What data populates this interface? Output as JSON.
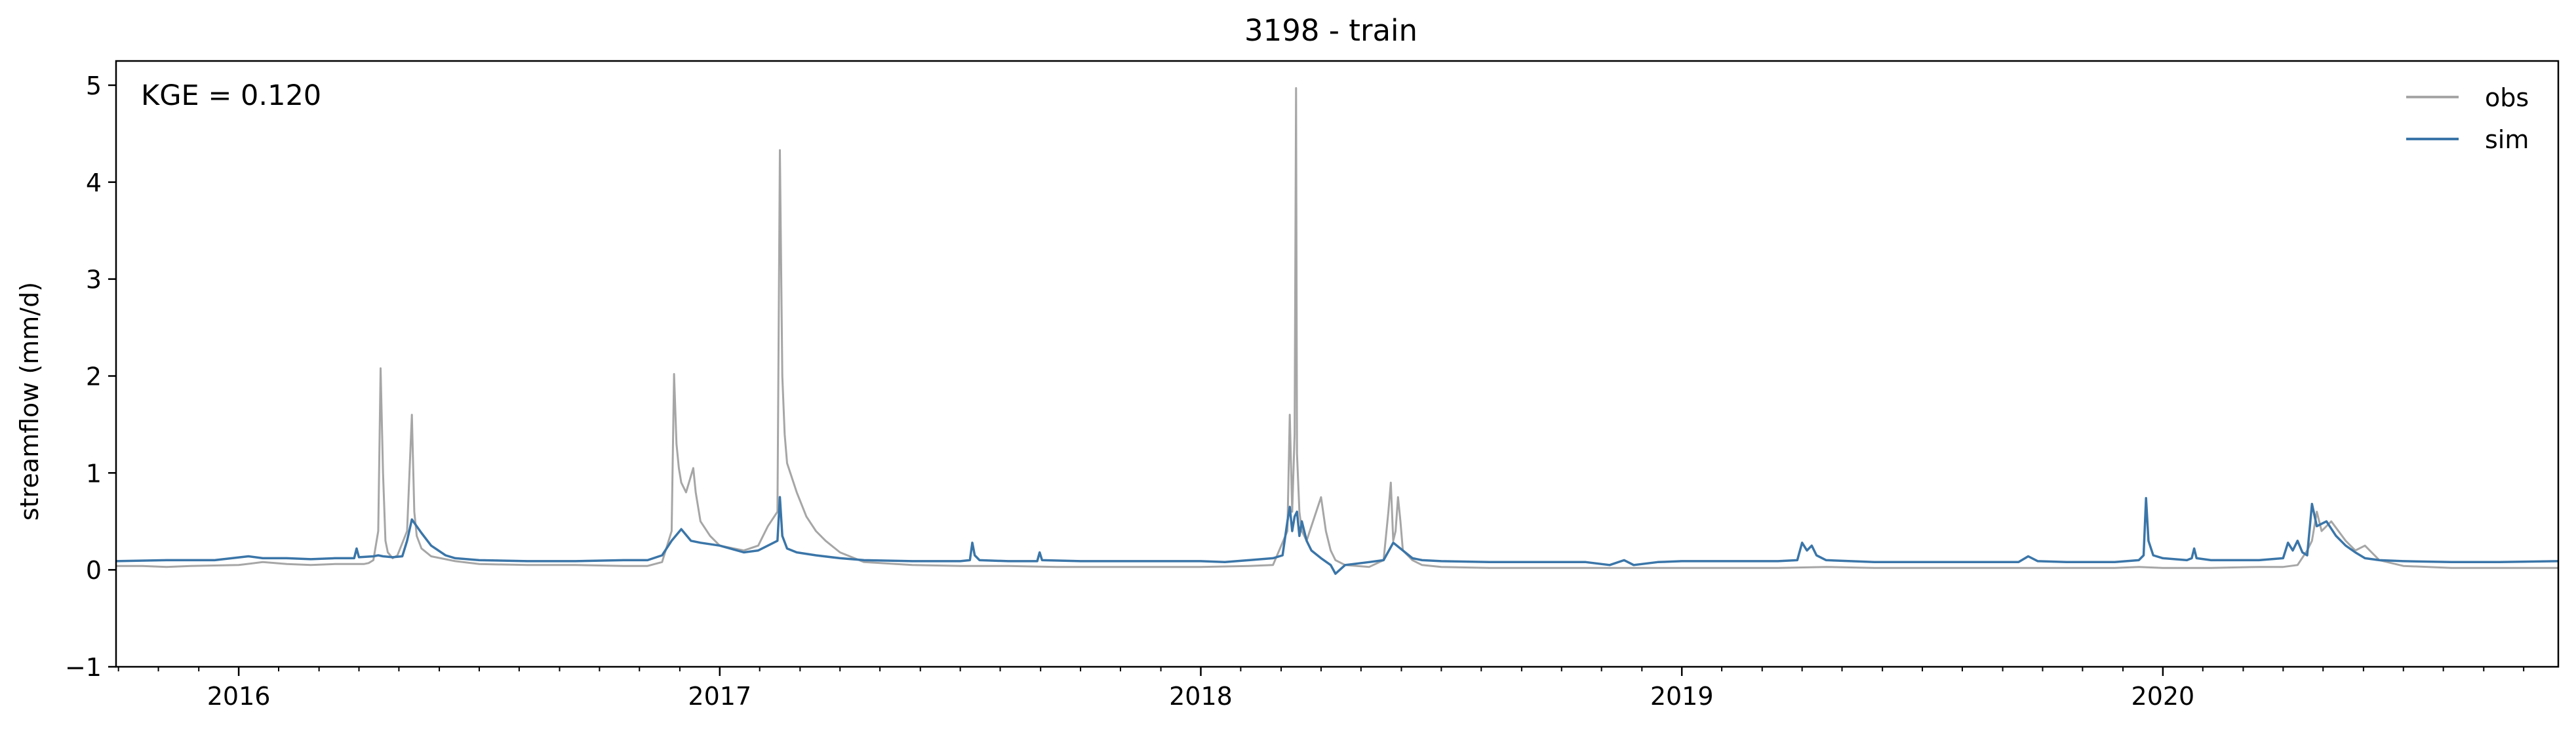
{
  "chart_data": {
    "type": "line",
    "title": "3198 - train",
    "xlabel": "",
    "ylabel": "streamflow (mm/d)",
    "annotation": "KGE = 0.120",
    "xlim": [
      2015.745,
      2020.822
    ],
    "ylim": [
      -1,
      5.25
    ],
    "yticks": [
      -1,
      0,
      1,
      2,
      3,
      4,
      5
    ],
    "xticks": [
      {
        "value": 2016.0,
        "label": "2016"
      },
      {
        "value": 2017.0,
        "label": "2017"
      },
      {
        "value": 2018.0,
        "label": "2018"
      },
      {
        "value": 2019.0,
        "label": "2019"
      },
      {
        "value": 2020.0,
        "label": "2020"
      }
    ],
    "minor_xticks": [
      2015.75,
      2015.833,
      2015.917,
      2016.083,
      2016.167,
      2016.25,
      2016.333,
      2016.417,
      2016.5,
      2016.583,
      2016.667,
      2016.75,
      2016.833,
      2016.917,
      2017.083,
      2017.167,
      2017.25,
      2017.333,
      2017.417,
      2017.5,
      2017.583,
      2017.667,
      2017.75,
      2017.833,
      2017.917,
      2018.083,
      2018.167,
      2018.25,
      2018.333,
      2018.417,
      2018.5,
      2018.583,
      2018.667,
      2018.75,
      2018.833,
      2018.917,
      2019.083,
      2019.167,
      2019.25,
      2019.333,
      2019.417,
      2019.5,
      2019.583,
      2019.667,
      2019.75,
      2019.833,
      2019.917,
      2020.083,
      2020.167,
      2020.25,
      2020.333,
      2020.417,
      2020.5,
      2020.583,
      2020.667,
      2020.75
    ],
    "grid": false,
    "legend_position": "top-right",
    "series": [
      {
        "name": "obs",
        "color": "#a6a6a6",
        "x": [
          2015.745,
          2015.8,
          2015.85,
          2015.9,
          2016.0,
          2016.05,
          2016.1,
          2016.15,
          2016.2,
          2016.26,
          2016.27,
          2016.28,
          2016.29,
          2016.295,
          2016.3,
          2016.305,
          2016.31,
          2016.32,
          2016.33,
          2016.35,
          2016.36,
          2016.365,
          2016.37,
          2016.38,
          2016.4,
          2016.45,
          2016.5,
          2016.6,
          2016.7,
          2016.8,
          2016.85,
          2016.88,
          2016.9,
          2016.905,
          2016.91,
          2016.915,
          2016.92,
          2016.93,
          2016.945,
          2016.95,
          2016.96,
          2016.98,
          2017.0,
          2017.05,
          2017.08,
          2017.09,
          2017.1,
          2017.12,
          2017.125,
          2017.13,
          2017.135,
          2017.14,
          2017.16,
          2017.18,
          2017.2,
          2017.22,
          2017.25,
          2017.3,
          2017.4,
          2017.5,
          2017.6,
          2017.7,
          2017.8,
          2017.9,
          2018.0,
          2018.1,
          2018.15,
          2018.18,
          2018.185,
          2018.19,
          2018.195,
          2018.198,
          2018.2,
          2018.205,
          2018.21,
          2018.22,
          2018.23,
          2018.25,
          2018.26,
          2018.27,
          2018.28,
          2018.3,
          2018.35,
          2018.38,
          2018.39,
          2018.395,
          2018.4,
          2018.405,
          2018.41,
          2018.415,
          2018.42,
          2018.44,
          2018.46,
          2018.5,
          2018.6,
          2018.7,
          2018.8,
          2018.9,
          2019.0,
          2019.1,
          2019.2,
          2019.3,
          2019.4,
          2019.5,
          2019.6,
          2019.7,
          2019.8,
          2019.9,
          2019.95,
          2020.0,
          2020.1,
          2020.2,
          2020.25,
          2020.28,
          2020.3,
          2020.31,
          2020.32,
          2020.33,
          2020.35,
          2020.38,
          2020.4,
          2020.42,
          2020.45,
          2020.5,
          2020.6,
          2020.7,
          2020.822
        ],
        "y": [
          0.04,
          0.04,
          0.03,
          0.04,
          0.05,
          0.08,
          0.06,
          0.05,
          0.06,
          0.06,
          0.07,
          0.1,
          0.4,
          2.08,
          1.0,
          0.3,
          0.18,
          0.12,
          0.15,
          0.4,
          1.6,
          0.6,
          0.35,
          0.22,
          0.14,
          0.09,
          0.06,
          0.05,
          0.05,
          0.04,
          0.04,
          0.08,
          0.4,
          2.02,
          1.3,
          1.05,
          0.9,
          0.8,
          1.05,
          0.8,
          0.5,
          0.35,
          0.25,
          0.2,
          0.25,
          0.35,
          0.45,
          0.6,
          4.33,
          2.0,
          1.4,
          1.1,
          0.8,
          0.55,
          0.4,
          0.3,
          0.18,
          0.08,
          0.05,
          0.04,
          0.04,
          0.03,
          0.03,
          0.03,
          0.03,
          0.04,
          0.05,
          0.4,
          1.6,
          0.6,
          1.4,
          4.97,
          1.2,
          0.6,
          0.4,
          0.3,
          0.45,
          0.75,
          0.4,
          0.2,
          0.1,
          0.05,
          0.03,
          0.1,
          0.6,
          0.9,
          0.3,
          0.4,
          0.75,
          0.5,
          0.2,
          0.1,
          0.05,
          0.03,
          0.02,
          0.02,
          0.02,
          0.02,
          0.02,
          0.02,
          0.02,
          0.03,
          0.02,
          0.02,
          0.02,
          0.02,
          0.02,
          0.02,
          0.03,
          0.02,
          0.02,
          0.03,
          0.03,
          0.05,
          0.2,
          0.3,
          0.6,
          0.4,
          0.5,
          0.3,
          0.2,
          0.25,
          0.1,
          0.04,
          0.02,
          0.02,
          0.02
        ]
      },
      {
        "name": "sim",
        "color": "#3a75a8",
        "x": [
          2015.745,
          2015.85,
          2015.95,
          2016.02,
          2016.05,
          2016.1,
          2016.15,
          2016.2,
          2016.24,
          2016.245,
          2016.25,
          2016.28,
          2016.29,
          2016.3,
          2016.32,
          2016.34,
          2016.35,
          2016.36,
          2016.38,
          2016.4,
          2016.43,
          2016.45,
          2016.5,
          2016.6,
          2016.7,
          2016.8,
          2016.85,
          2016.88,
          2016.9,
          2016.92,
          2016.94,
          2016.96,
          2017.0,
          2017.05,
          2017.08,
          2017.1,
          2017.12,
          2017.125,
          2017.13,
          2017.14,
          2017.16,
          2017.2,
          2017.25,
          2017.3,
          2017.4,
          2017.5,
          2017.52,
          2017.525,
          2017.53,
          2017.54,
          2017.6,
          2017.66,
          2017.665,
          2017.67,
          2017.75,
          2017.85,
          2017.95,
          2018.0,
          2018.05,
          2018.1,
          2018.15,
          2018.17,
          2018.18,
          2018.185,
          2018.19,
          2018.195,
          2018.2,
          2018.205,
          2018.21,
          2018.22,
          2018.23,
          2018.25,
          2018.27,
          2018.28,
          2018.3,
          2018.35,
          2018.38,
          2018.4,
          2018.42,
          2018.44,
          2018.46,
          2018.5,
          2018.6,
          2018.7,
          2018.8,
          2018.85,
          2018.88,
          2018.9,
          2018.95,
          2019.0,
          2019.1,
          2019.15,
          2019.2,
          2019.24,
          2019.25,
          2019.26,
          2019.27,
          2019.28,
          2019.3,
          2019.4,
          2019.5,
          2019.6,
          2019.7,
          2019.72,
          2019.74,
          2019.8,
          2019.9,
          2019.95,
          2019.96,
          2019.965,
          2019.97,
          2019.98,
          2020.0,
          2020.05,
          2020.06,
          2020.065,
          2020.07,
          2020.1,
          2020.2,
          2020.25,
          2020.26,
          2020.27,
          2020.28,
          2020.29,
          2020.3,
          2020.31,
          2020.32,
          2020.34,
          2020.36,
          2020.38,
          2020.4,
          2020.42,
          2020.45,
          2020.5,
          2020.6,
          2020.7,
          2020.822
        ],
        "y": [
          0.09,
          0.1,
          0.1,
          0.14,
          0.12,
          0.12,
          0.11,
          0.12,
          0.12,
          0.22,
          0.13,
          0.14,
          0.15,
          0.14,
          0.13,
          0.14,
          0.3,
          0.52,
          0.38,
          0.25,
          0.15,
          0.12,
          0.1,
          0.09,
          0.09,
          0.1,
          0.1,
          0.15,
          0.3,
          0.42,
          0.3,
          0.28,
          0.25,
          0.18,
          0.2,
          0.25,
          0.3,
          0.75,
          0.35,
          0.22,
          0.18,
          0.15,
          0.12,
          0.1,
          0.09,
          0.09,
          0.1,
          0.28,
          0.15,
          0.1,
          0.09,
          0.09,
          0.18,
          0.1,
          0.09,
          0.09,
          0.09,
          0.09,
          0.08,
          0.1,
          0.12,
          0.15,
          0.5,
          0.65,
          0.4,
          0.55,
          0.6,
          0.35,
          0.5,
          0.3,
          0.2,
          0.12,
          0.05,
          -0.04,
          0.05,
          0.08,
          0.1,
          0.28,
          0.2,
          0.12,
          0.1,
          0.09,
          0.08,
          0.08,
          0.08,
          0.05,
          0.1,
          0.05,
          0.08,
          0.09,
          0.09,
          0.09,
          0.09,
          0.1,
          0.28,
          0.2,
          0.25,
          0.15,
          0.1,
          0.08,
          0.08,
          0.08,
          0.08,
          0.14,
          0.09,
          0.08,
          0.08,
          0.1,
          0.15,
          0.74,
          0.3,
          0.15,
          0.12,
          0.1,
          0.12,
          0.22,
          0.12,
          0.1,
          0.1,
          0.12,
          0.28,
          0.2,
          0.3,
          0.18,
          0.15,
          0.68,
          0.45,
          0.5,
          0.35,
          0.25,
          0.18,
          0.12,
          0.1,
          0.09,
          0.08,
          0.08,
          0.09
        ]
      }
    ]
  }
}
